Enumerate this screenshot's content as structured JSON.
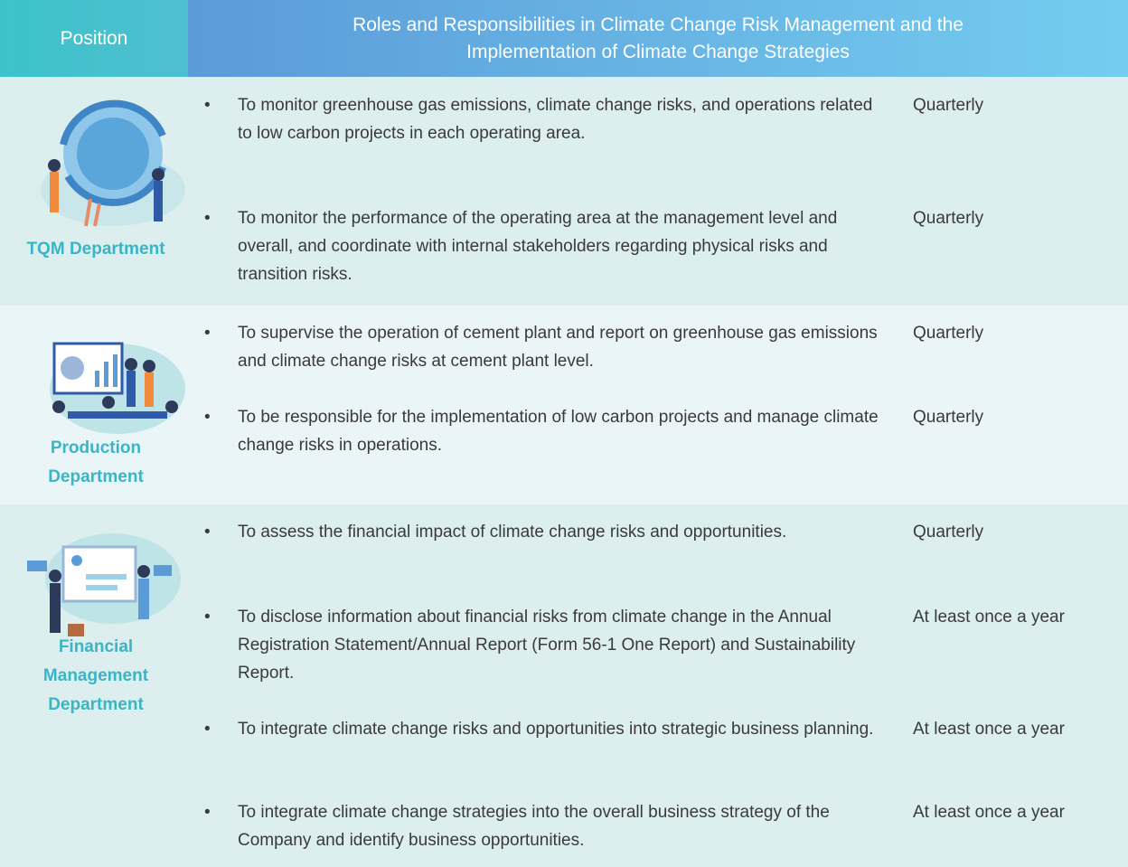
{
  "header": {
    "position": "Position",
    "roles": "Roles and Responsibilities in Climate Change Risk Management and the Implementation of Climate Change Strategies"
  },
  "rows": [
    {
      "position": "TQM Department",
      "items": [
        {
          "text": "To monitor greenhouse gas emissions, climate change risks, and operations related to low carbon projects in each operating area.",
          "frequency": "Quarterly"
        },
        {
          "text": "To monitor the performance of the operating area at the management level and overall, and coordinate with internal stakeholders regarding physical risks and transition risks.",
          "frequency": "Quarterly"
        }
      ]
    },
    {
      "position": "Production Department",
      "items": [
        {
          "text": "To supervise the operation of cement plant and report on greenhouse gas emissions and climate change risks at cement plant level.",
          "frequency": "Quarterly"
        },
        {
          "text": "To be responsible for the implementation of low carbon projects and manage climate change risks in operations.",
          "frequency": "Quarterly"
        }
      ]
    },
    {
      "position": "Financial Management Department",
      "items": [
        {
          "text": "To assess the financial impact of climate change risks and opportunities.",
          "frequency": "Quarterly"
        },
        {
          "text": "To disclose information about financial risks from climate change in the Annual Registration Statement/Annual Report (Form 56-1 One Report) and Sustainability Report.",
          "frequency": "At least once a year"
        },
        {
          "text": "To integrate climate change risks and opportunities into strategic business planning.",
          "frequency": "At least once a year"
        },
        {
          "text": "To integrate climate change strategies into the overall business strategy of the Company and identify business opportunities.",
          "frequency": "At least once a year"
        }
      ]
    }
  ]
}
